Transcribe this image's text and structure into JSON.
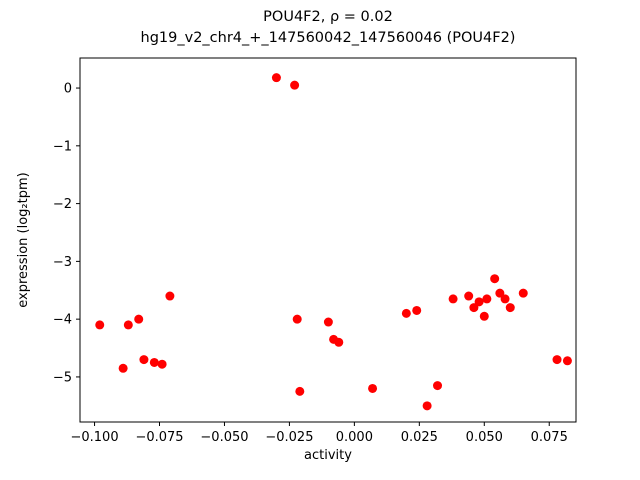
{
  "chart_data": {
    "type": "scatter",
    "title": "POU4F2, ρ = 0.02",
    "subtitle": "hg19_v2_chr4_+_147560042_147560046 (POU4F2)",
    "xlabel": "activity",
    "ylabel": "expression (log₂tpm)",
    "xlim": [
      -0.1056,
      0.0853
    ],
    "ylim": [
      -5.78,
      0.52
    ],
    "grid": false,
    "legend": null,
    "point_color": "#ff0000",
    "marker_radius": 4.5,
    "x_ticks": {
      "values": [
        -0.1,
        -0.075,
        -0.05,
        -0.025,
        0.0,
        0.025,
        0.05,
        0.075
      ],
      "labels": [
        "−0.100",
        "−0.075",
        "−0.050",
        "−0.025",
        "0.000",
        "0.025",
        "0.050",
        "0.075"
      ]
    },
    "y_ticks": {
      "values": [
        0,
        -1,
        -2,
        -3,
        -4,
        -5
      ],
      "labels": [
        "0",
        "−1",
        "−2",
        "−3",
        "−4",
        "−5"
      ]
    },
    "points": [
      [
        -0.03,
        0.18
      ],
      [
        -0.023,
        0.05
      ],
      [
        -0.098,
        -4.1
      ],
      [
        -0.089,
        -4.85
      ],
      [
        -0.087,
        -4.1
      ],
      [
        -0.083,
        -4.0
      ],
      [
        -0.081,
        -4.7
      ],
      [
        -0.077,
        -4.75
      ],
      [
        -0.074,
        -4.78
      ],
      [
        -0.071,
        -3.6
      ],
      [
        -0.022,
        -4.0
      ],
      [
        -0.021,
        -5.25
      ],
      [
        -0.01,
        -4.05
      ],
      [
        -0.008,
        -4.35
      ],
      [
        -0.006,
        -4.4
      ],
      [
        0.007,
        -5.2
      ],
      [
        0.02,
        -3.9
      ],
      [
        0.024,
        -3.85
      ],
      [
        0.028,
        -5.5
      ],
      [
        0.032,
        -5.15
      ],
      [
        0.038,
        -3.65
      ],
      [
        0.044,
        -3.6
      ],
      [
        0.046,
        -3.8
      ],
      [
        0.048,
        -3.7
      ],
      [
        0.05,
        -3.95
      ],
      [
        0.051,
        -3.65
      ],
      [
        0.054,
        -3.3
      ],
      [
        0.056,
        -3.55
      ],
      [
        0.058,
        -3.65
      ],
      [
        0.06,
        -3.8
      ],
      [
        0.065,
        -3.55
      ],
      [
        0.078,
        -4.7
      ],
      [
        0.082,
        -4.72
      ]
    ]
  }
}
